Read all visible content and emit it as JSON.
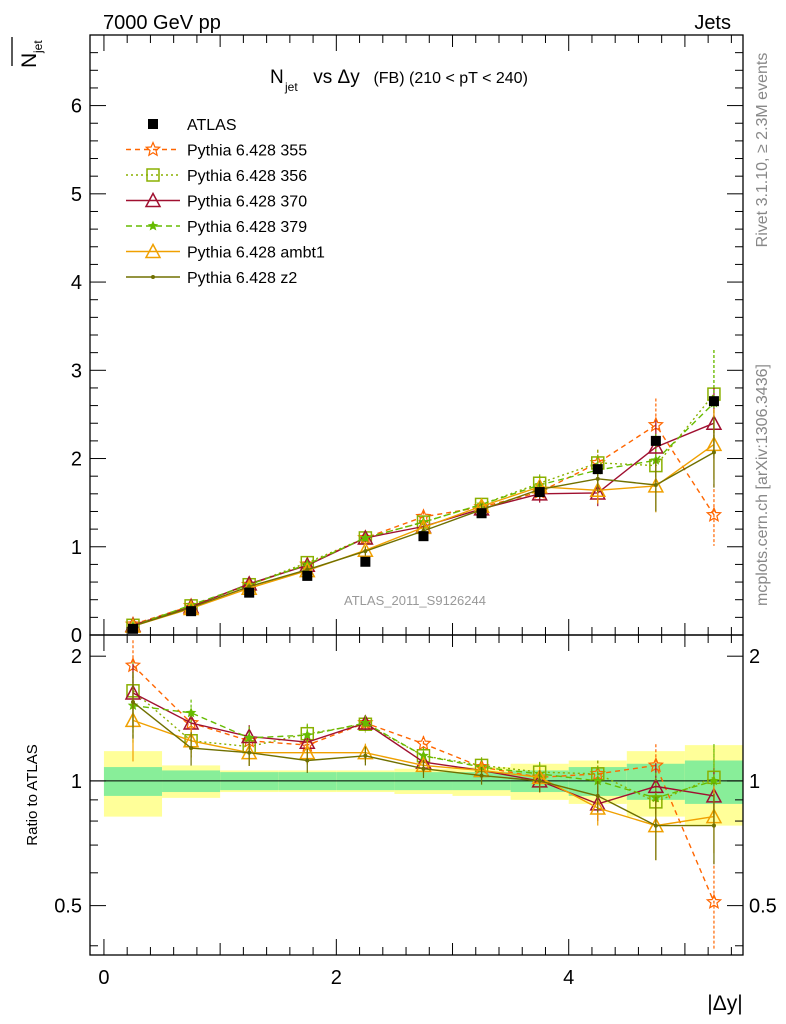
{
  "header": {
    "left": "7000 GeV pp",
    "right": "Jets"
  },
  "side_labels": {
    "rivet": "Rivet 3.1.10, ≥ 2.3M events",
    "mcplots": "mcplots.cern.ch [arXiv:1306.3436]"
  },
  "watermark": "ATLAS_2011_S9126244",
  "chart_data": [
    {
      "type": "line",
      "title_main": "N",
      "title_sub": "jet",
      "title_rest": " vs Δy",
      "title_small": " (FB) (210 < pT < 240)",
      "ylabel_main": "N",
      "ylabel_sub": "jet",
      "ylim": [
        0,
        6.8
      ],
      "yticks": [
        0,
        1,
        2,
        3,
        4,
        5,
        6
      ],
      "x": [
        0.25,
        0.75,
        1.25,
        1.75,
        2.25,
        2.75,
        3.25,
        3.75,
        4.25,
        4.75,
        5.25
      ],
      "data_series": {
        "name": "ATLAS",
        "color": "#000000",
        "values": [
          0.07,
          0.27,
          0.48,
          0.67,
          0.83,
          1.12,
          1.38,
          1.62,
          1.88,
          2.2,
          2.65
        ]
      },
      "series": [
        {
          "name": "Pythia 6.428 355",
          "color": "#ff6600",
          "dash": "5,4",
          "marker": "star",
          "values": [
            0.12,
            0.33,
            0.57,
            0.8,
            1.1,
            1.34,
            1.45,
            1.62,
            1.95,
            2.38,
            1.36
          ],
          "err": [
            0.02,
            0.03,
            0.04,
            0.05,
            0.05,
            0.06,
            0.07,
            0.1,
            0.15,
            0.3,
            0.35
          ]
        },
        {
          "name": "Pythia 6.428 356",
          "color": "#8ab000",
          "dash": "2,3",
          "marker": "square",
          "values": [
            0.11,
            0.33,
            0.57,
            0.82,
            1.1,
            1.28,
            1.48,
            1.72,
            1.95,
            1.92,
            2.73
          ],
          "err": [
            0.02,
            0.03,
            0.04,
            0.05,
            0.05,
            0.06,
            0.07,
            0.1,
            0.15,
            0.3,
            0.5
          ]
        },
        {
          "name": "Pythia 6.428 370",
          "color": "#a01030",
          "dash": "",
          "marker": "triangle",
          "values": [
            0.11,
            0.32,
            0.58,
            0.79,
            1.1,
            1.23,
            1.43,
            1.6,
            1.61,
            2.13,
            2.4
          ],
          "err": [
            0.02,
            0.03,
            0.04,
            0.05,
            0.05,
            0.06,
            0.07,
            0.1,
            0.15,
            0.3,
            0.4
          ]
        },
        {
          "name": "Pythia 6.428 379",
          "color": "#66bb00",
          "dash": "6,4",
          "marker": "smallstar",
          "values": [
            0.1,
            0.34,
            0.57,
            0.8,
            1.1,
            1.28,
            1.48,
            1.7,
            1.87,
            1.98,
            2.63
          ],
          "err": [
            0.02,
            0.03,
            0.04,
            0.05,
            0.05,
            0.06,
            0.07,
            0.1,
            0.15,
            0.3,
            0.6
          ]
        },
        {
          "name": "Pythia 6.428 ambt1",
          "color": "#f0a000",
          "dash": "",
          "marker": "triangle",
          "values": [
            0.1,
            0.3,
            0.53,
            0.73,
            0.96,
            1.22,
            1.46,
            1.68,
            1.64,
            1.69,
            2.16
          ],
          "err": [
            0.02,
            0.03,
            0.04,
            0.05,
            0.05,
            0.06,
            0.07,
            0.1,
            0.15,
            0.3,
            0.4
          ]
        },
        {
          "name": "Pythia 6.428 z2",
          "color": "#707000",
          "dash": "",
          "marker": "dot",
          "values": [
            0.1,
            0.31,
            0.55,
            0.74,
            0.95,
            1.18,
            1.42,
            1.65,
            1.77,
            1.7,
            2.07
          ],
          "err": [
            0.02,
            0.03,
            0.04,
            0.05,
            0.05,
            0.06,
            0.07,
            0.1,
            0.15,
            0.3,
            0.4
          ]
        }
      ]
    },
    {
      "type": "line",
      "ylabel": "Ratio to ATLAS",
      "xlabel": "|Δy|",
      "ylim": [
        0.38,
        2.25
      ],
      "yticks": [
        0.5,
        1,
        2
      ],
      "ytick_labels": [
        "0.5",
        "1",
        "2"
      ],
      "xlim": [
        -0.12,
        5.5
      ],
      "xticks": [
        0,
        2,
        4
      ],
      "x_edges": [
        0,
        0.5,
        1,
        1.5,
        2,
        2.5,
        3,
        3.5,
        4,
        4.5,
        5,
        5.5
      ],
      "band_inner": [
        0.08,
        0.06,
        0.05,
        0.05,
        0.05,
        0.05,
        0.05,
        0.06,
        0.08,
        0.1,
        0.12
      ],
      "band_outer": [
        0.18,
        0.09,
        0.06,
        0.06,
        0.06,
        0.07,
        0.08,
        0.1,
        0.12,
        0.18,
        0.22
      ],
      "band_inner_color": "#88ee99",
      "band_outer_color": "#ffff99",
      "series": [
        {
          "name": "Pythia 6.428 355",
          "color": "#ff6600",
          "dash": "5,4",
          "marker": "star",
          "values": [
            1.9,
            1.38,
            1.25,
            1.22,
            1.38,
            1.23,
            1.08,
            1.02,
            1.04,
            1.09,
            0.51
          ]
        },
        {
          "name": "Pythia 6.428 356",
          "color": "#8ab000",
          "dash": "2,3",
          "marker": "square",
          "values": [
            1.65,
            1.25,
            1.21,
            1.3,
            1.37,
            1.15,
            1.09,
            1.05,
            1.04,
            0.89,
            1.02
          ]
        },
        {
          "name": "Pythia 6.428 370",
          "color": "#a01030",
          "dash": "",
          "marker": "triangle",
          "values": [
            1.63,
            1.38,
            1.28,
            1.24,
            1.38,
            1.11,
            1.06,
            1.0,
            0.88,
            0.97,
            0.92
          ]
        },
        {
          "name": "Pythia 6.428 379",
          "color": "#66bb00",
          "dash": "6,4",
          "marker": "smallstar",
          "values": [
            1.52,
            1.46,
            1.27,
            1.29,
            1.38,
            1.15,
            1.08,
            1.04,
            1.0,
            0.91,
            1.0
          ]
        },
        {
          "name": "Pythia 6.428 ambt1",
          "color": "#f0a000",
          "dash": "",
          "marker": "triangle",
          "values": [
            1.4,
            1.25,
            1.17,
            1.17,
            1.17,
            1.09,
            1.06,
            1.02,
            0.86,
            0.78,
            0.82
          ]
        },
        {
          "name": "Pythia 6.428 z2",
          "color": "#707000",
          "dash": "",
          "marker": "dot",
          "values": [
            1.55,
            1.2,
            1.17,
            1.12,
            1.15,
            1.07,
            1.03,
            1.0,
            0.92,
            0.78,
            0.78
          ]
        }
      ]
    }
  ]
}
